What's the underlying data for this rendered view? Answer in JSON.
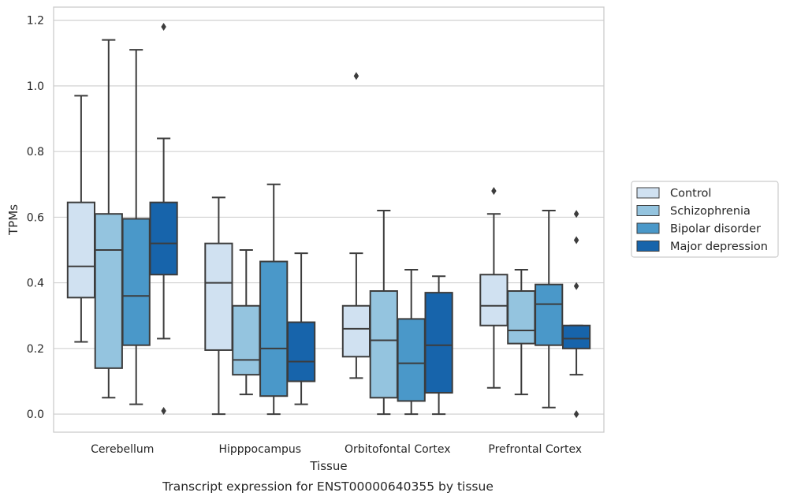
{
  "caption": "Transcript expression for ENST00000640355 by tissue",
  "chart_data": {
    "type": "boxplot",
    "xlabel": "Tissue",
    "ylabel": "TPMs",
    "ylim": [
      -0.055,
      1.24
    ],
    "yticks": [
      0.0,
      0.2,
      0.4,
      0.6,
      0.8,
      1.0,
      1.2
    ],
    "ytick_labels": [
      "0.0",
      "0.2",
      "0.4",
      "0.6",
      "0.8",
      "1.0",
      "1.2"
    ],
    "grid": "horizontal",
    "legend_position": "right, outside plot",
    "categories": [
      "Cerebellum",
      "Hipppocampus",
      "Orbitofontal Cortex",
      "Prefrontal Cortex"
    ],
    "series": [
      {
        "name": "Control",
        "color": "#d0e1f1",
        "boxes": [
          {
            "whislo": 0.22,
            "q1": 0.355,
            "med": 0.45,
            "q3": 0.645,
            "whishi": 0.97,
            "fliers": []
          },
          {
            "whislo": 0.0,
            "q1": 0.195,
            "med": 0.4,
            "q3": 0.52,
            "whishi": 0.66,
            "fliers": []
          },
          {
            "whislo": 0.11,
            "q1": 0.175,
            "med": 0.26,
            "q3": 0.33,
            "whishi": 0.49,
            "fliers": [
              1.03
            ]
          },
          {
            "whislo": 0.08,
            "q1": 0.27,
            "med": 0.33,
            "q3": 0.425,
            "whishi": 0.61,
            "fliers": [
              0.68
            ]
          }
        ]
      },
      {
        "name": "Schizophrenia",
        "color": "#94c4df",
        "boxes": [
          {
            "whislo": 0.05,
            "q1": 0.14,
            "med": 0.5,
            "q3": 0.61,
            "whishi": 1.14,
            "fliers": []
          },
          {
            "whislo": 0.06,
            "q1": 0.12,
            "med": 0.165,
            "q3": 0.33,
            "whishi": 0.5,
            "fliers": []
          },
          {
            "whislo": 0.0,
            "q1": 0.05,
            "med": 0.225,
            "q3": 0.375,
            "whishi": 0.62,
            "fliers": []
          },
          {
            "whislo": 0.06,
            "q1": 0.215,
            "med": 0.255,
            "q3": 0.375,
            "whishi": 0.44,
            "fliers": []
          }
        ]
      },
      {
        "name": "Bipolar disorder",
        "color": "#4a98c9",
        "boxes": [
          {
            "whislo": 0.03,
            "q1": 0.21,
            "med": 0.36,
            "q3": 0.595,
            "whishi": 1.11,
            "fliers": []
          },
          {
            "whislo": 0.0,
            "q1": 0.055,
            "med": 0.2,
            "q3": 0.465,
            "whishi": 0.7,
            "fliers": []
          },
          {
            "whislo": 0.0,
            "q1": 0.04,
            "med": 0.155,
            "q3": 0.29,
            "whishi": 0.44,
            "fliers": []
          },
          {
            "whislo": 0.02,
            "q1": 0.21,
            "med": 0.335,
            "q3": 0.395,
            "whishi": 0.62,
            "fliers": []
          }
        ]
      },
      {
        "name": "Major depression",
        "color": "#1764ab",
        "boxes": [
          {
            "whislo": 0.23,
            "q1": 0.425,
            "med": 0.52,
            "q3": 0.645,
            "whishi": 0.84,
            "fliers": [
              1.18,
              0.01
            ]
          },
          {
            "whislo": 0.03,
            "q1": 0.1,
            "med": 0.16,
            "q3": 0.28,
            "whishi": 0.49,
            "fliers": []
          },
          {
            "whislo": 0.0,
            "q1": 0.065,
            "med": 0.21,
            "q3": 0.37,
            "whishi": 0.42,
            "fliers": []
          },
          {
            "whislo": 0.12,
            "q1": 0.2,
            "med": 0.23,
            "q3": 0.27,
            "whishi": 0.27,
            "fliers": [
              0.61,
              0.53,
              0.39,
              0.0
            ]
          }
        ]
      }
    ]
  }
}
